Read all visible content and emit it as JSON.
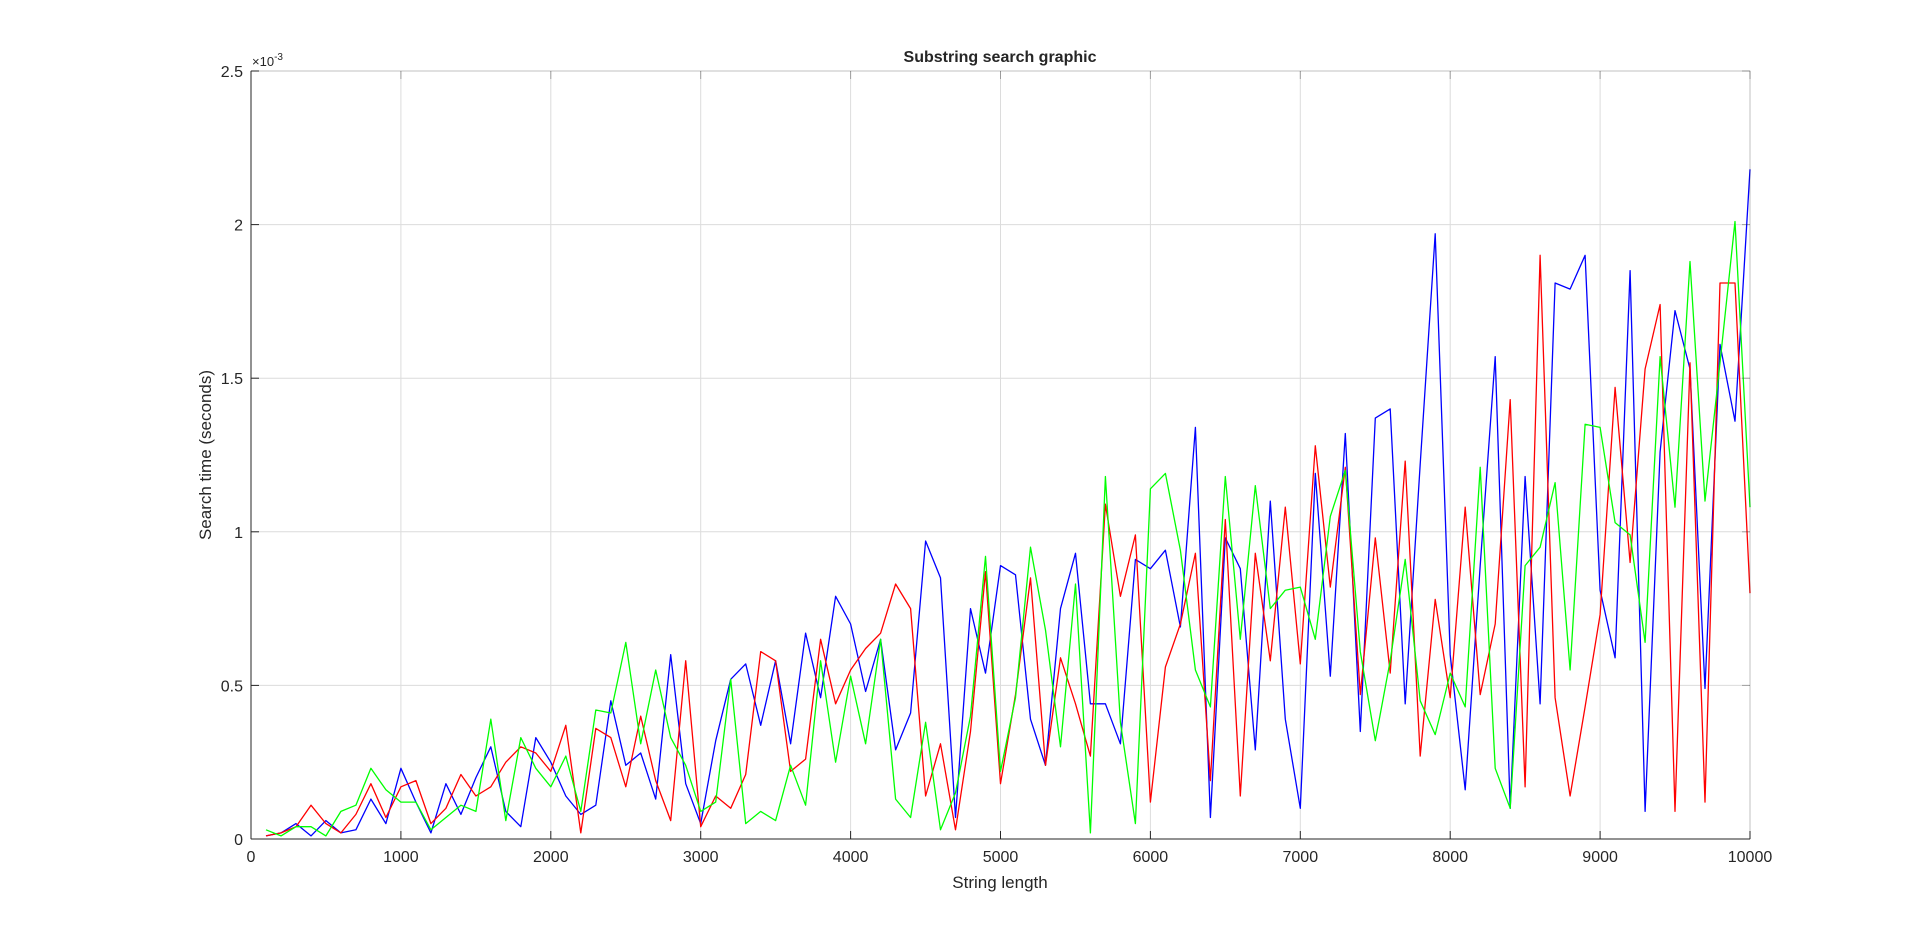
{
  "chart_data": {
    "type": "line",
    "title": "Substring search graphic",
    "xlabel": "String length",
    "ylabel": "Search time (seconds)",
    "y_exponent_label": "×10",
    "y_exponent_power": "-3",
    "xlim": [
      0,
      10000
    ],
    "ylim": [
      0,
      2.5
    ],
    "y_scale_factor": 0.001,
    "xticks": [
      0,
      1000,
      2000,
      3000,
      4000,
      5000,
      6000,
      7000,
      8000,
      9000,
      10000
    ],
    "xtick_labels": [
      "0",
      "1000",
      "2000",
      "3000",
      "4000",
      "5000",
      "6000",
      "7000",
      "8000",
      "9000",
      "10000"
    ],
    "yticks": [
      0,
      0.5,
      1,
      1.5,
      2,
      2.5
    ],
    "ytick_labels": [
      "0",
      "0.5",
      "1",
      "1.5",
      "2",
      "2.5"
    ],
    "grid": true,
    "legend": "none",
    "x": [
      100,
      200,
      300,
      400,
      500,
      600,
      700,
      800,
      900,
      1000,
      1100,
      1200,
      1300,
      1400,
      1500,
      1600,
      1700,
      1800,
      1900,
      2000,
      2100,
      2200,
      2300,
      2400,
      2500,
      2600,
      2700,
      2800,
      2900,
      3000,
      3100,
      3200,
      3300,
      3400,
      3500,
      3600,
      3700,
      3800,
      3900,
      4000,
      4100,
      4200,
      4300,
      4400,
      4500,
      4600,
      4700,
      4800,
      4900,
      5000,
      5100,
      5200,
      5300,
      5400,
      5500,
      5600,
      5700,
      5800,
      5900,
      6000,
      6100,
      6200,
      6300,
      6400,
      6500,
      6600,
      6700,
      6800,
      6900,
      7000,
      7100,
      7200,
      7300,
      7400,
      7500,
      7600,
      7700,
      7800,
      7900,
      8000,
      8100,
      8200,
      8300,
      8400,
      8500,
      8600,
      8700,
      8800,
      8900,
      9000,
      9100,
      9200,
      9300,
      9400,
      9500,
      9600,
      9700,
      9800,
      9900,
      10000
    ],
    "series": [
      {
        "color": "#0000ff",
        "values": [
          0.01,
          0.02,
          0.05,
          0.01,
          0.06,
          0.02,
          0.03,
          0.13,
          0.05,
          0.23,
          0.12,
          0.02,
          0.18,
          0.08,
          0.2,
          0.3,
          0.09,
          0.04,
          0.33,
          0.25,
          0.14,
          0.08,
          0.11,
          0.45,
          0.24,
          0.28,
          0.13,
          0.6,
          0.18,
          0.05,
          0.32,
          0.52,
          0.57,
          0.37,
          0.58,
          0.31,
          0.67,
          0.46,
          0.79,
          0.7,
          0.48,
          0.65,
          0.29,
          0.41,
          0.97,
          0.85,
          0.07,
          0.75,
          0.54,
          0.89,
          0.86,
          0.39,
          0.24,
          0.75,
          0.93,
          0.44,
          0.44,
          0.31,
          0.91,
          0.88,
          0.94,
          0.69,
          1.34,
          0.07,
          0.98,
          0.88,
          0.29,
          1.1,
          0.39,
          0.1,
          1.19,
          0.53,
          1.32,
          0.35,
          1.37,
          1.4,
          0.44,
          1.22,
          1.97,
          0.6,
          0.16,
          0.89,
          1.57,
          0.1,
          1.18,
          0.44,
          1.81,
          1.79,
          1.9,
          0.81,
          0.59,
          1.85,
          0.09,
          1.26,
          1.72,
          1.53,
          0.49,
          1.61,
          1.36,
          2.18
        ]
      },
      {
        "color": "#ff0000",
        "values": [
          0.01,
          0.02,
          0.04,
          0.11,
          0.05,
          0.02,
          0.08,
          0.18,
          0.07,
          0.17,
          0.19,
          0.05,
          0.1,
          0.21,
          0.14,
          0.17,
          0.25,
          0.3,
          0.28,
          0.22,
          0.37,
          0.02,
          0.36,
          0.33,
          0.17,
          0.4,
          0.19,
          0.06,
          0.58,
          0.04,
          0.14,
          0.1,
          0.21,
          0.61,
          0.58,
          0.22,
          0.26,
          0.65,
          0.44,
          0.55,
          0.62,
          0.67,
          0.83,
          0.75,
          0.14,
          0.31,
          0.03,
          0.35,
          0.87,
          0.18,
          0.47,
          0.85,
          0.24,
          0.59,
          0.44,
          0.27,
          1.09,
          0.79,
          0.99,
          0.12,
          0.56,
          0.7,
          0.93,
          0.19,
          1.04,
          0.14,
          0.93,
          0.58,
          1.08,
          0.57,
          1.28,
          0.82,
          1.21,
          0.47,
          0.98,
          0.54,
          1.23,
          0.27,
          0.78,
          0.46,
          1.08,
          0.47,
          0.7,
          1.43,
          0.17,
          1.9,
          0.46,
          0.14,
          0.43,
          0.73,
          1.47,
          0.9,
          1.53,
          1.74,
          0.09,
          1.55,
          0.12,
          1.81,
          1.81,
          0.8
        ]
      },
      {
        "color": "#00ff00",
        "values": [
          0.03,
          0.01,
          0.04,
          0.04,
          0.01,
          0.09,
          0.11,
          0.23,
          0.16,
          0.12,
          0.12,
          0.03,
          0.07,
          0.11,
          0.09,
          0.39,
          0.06,
          0.33,
          0.23,
          0.17,
          0.27,
          0.09,
          0.42,
          0.41,
          0.64,
          0.31,
          0.55,
          0.33,
          0.24,
          0.09,
          0.12,
          0.52,
          0.05,
          0.09,
          0.06,
          0.24,
          0.11,
          0.58,
          0.25,
          0.53,
          0.31,
          0.65,
          0.13,
          0.07,
          0.38,
          0.03,
          0.15,
          0.4,
          0.92,
          0.22,
          0.46,
          0.95,
          0.68,
          0.3,
          0.83,
          0.02,
          1.18,
          0.38,
          0.05,
          1.14,
          1.19,
          0.94,
          0.55,
          0.43,
          1.18,
          0.65,
          1.15,
          0.75,
          0.81,
          0.82,
          0.65,
          1.05,
          1.2,
          0.61,
          0.32,
          0.58,
          0.91,
          0.45,
          0.34,
          0.54,
          0.43,
          1.21,
          0.23,
          0.1,
          0.89,
          0.95,
          1.16,
          0.55,
          1.35,
          1.34,
          1.03,
          0.99,
          0.64,
          1.57,
          1.08,
          1.88,
          1.1,
          1.55,
          2.01,
          1.08
        ]
      }
    ]
  }
}
